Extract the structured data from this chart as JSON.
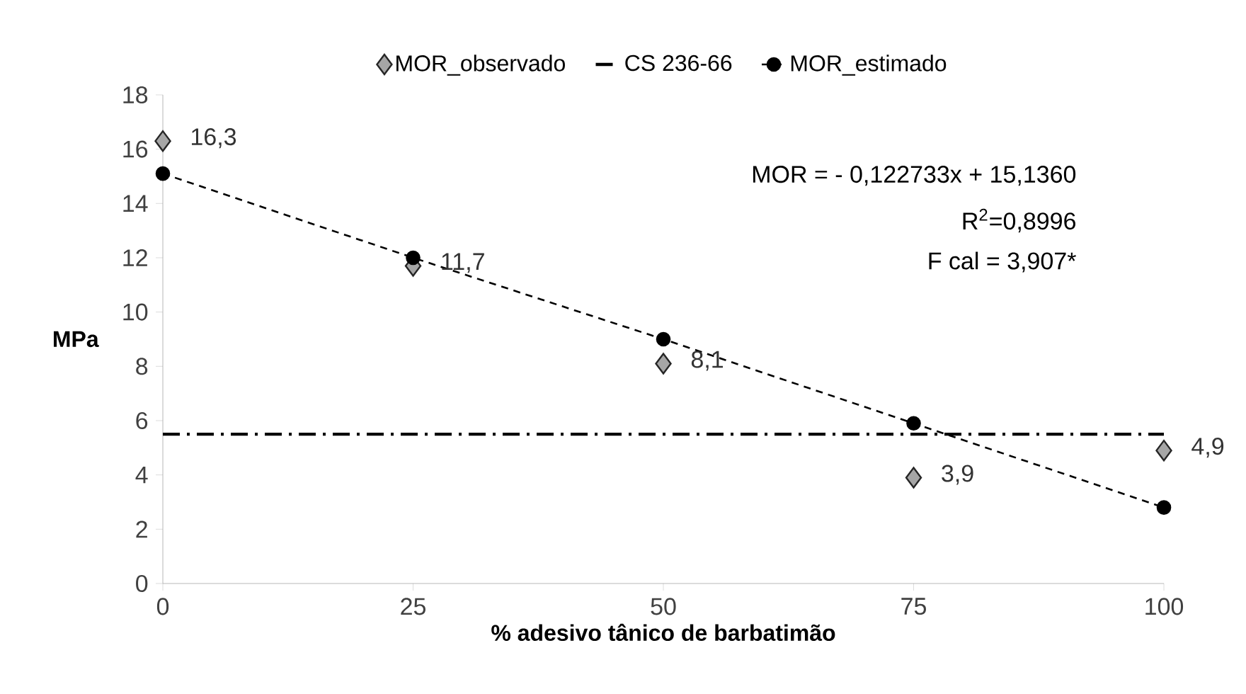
{
  "chart_data": {
    "type": "scatter",
    "xlabel": "% adesivo tânico de barbatimão",
    "ylabel": "MPa",
    "x": [
      0,
      25,
      50,
      75,
      100
    ],
    "series": [
      {
        "name": "MOR_observado",
        "color": "#a6a6a6",
        "marker": "diamond",
        "values": [
          16.3,
          11.7,
          8.1,
          3.9,
          4.9
        ],
        "value_labels": [
          "16,3",
          "11,7",
          "8,1",
          "3,9",
          "4,9"
        ]
      },
      {
        "name": "MOR_estimado",
        "type": "line",
        "color": "#000000",
        "marker": "circle",
        "line_style": "dashed",
        "values": [
          15.1,
          12.0,
          9.0,
          5.9,
          2.8
        ]
      }
    ],
    "ref_lines": [
      {
        "axis": "y",
        "value": 5.5,
        "label": "CS 236-66",
        "color": "#000000",
        "line_style": "dashdot"
      }
    ],
    "annotations": [
      "MOR = - 0,122733x + 15,1360",
      "R$^{2}$=0,8996",
      "F cal = 3,907*"
    ],
    "xlim": [
      0,
      100
    ],
    "xticks": [
      0,
      25,
      50,
      75,
      100
    ],
    "ylim": [
      0,
      18
    ],
    "yticks": [
      0,
      2,
      4,
      6,
      8,
      10,
      12,
      14,
      16,
      18
    ],
    "grid": false,
    "legend": "top"
  }
}
